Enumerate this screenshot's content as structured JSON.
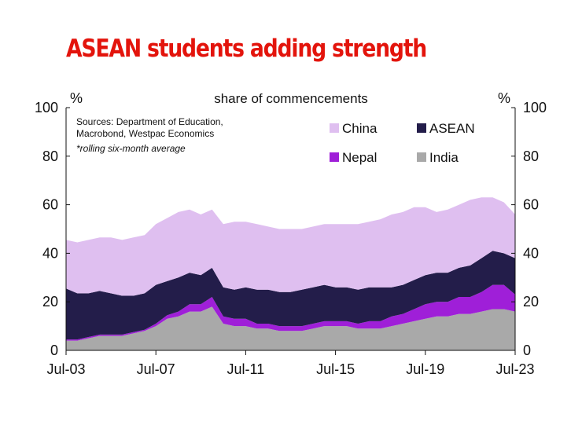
{
  "title": "ASEAN students adding strength",
  "chart_data": {
    "type": "area",
    "stacked": true,
    "subtitle": "share of commencements",
    "ylabel_left": "%",
    "ylabel_right": "%",
    "ylim": [
      0,
      100
    ],
    "yticks": [
      0,
      20,
      40,
      60,
      80,
      100
    ],
    "xlim": [
      2003.5,
      2023.5
    ],
    "xticks": [
      {
        "x": 2003.5,
        "label": "Jul-03"
      },
      {
        "x": 2007.5,
        "label": "Jul-07"
      },
      {
        "x": 2011.5,
        "label": "Jul-11"
      },
      {
        "x": 2015.5,
        "label": "Jul-15"
      },
      {
        "x": 2019.5,
        "label": "Jul-19"
      },
      {
        "x": 2023.5,
        "label": "Jul-23"
      }
    ],
    "sources": [
      "Sources: Department of Education,",
      "Macrobond, Westpac Economics"
    ],
    "note": "*rolling six-month average",
    "legend": [
      {
        "name": "China",
        "color": "#dfbff0"
      },
      {
        "name": "ASEAN",
        "color": "#231d4a"
      },
      {
        "name": "Nepal",
        "color": "#9f1fd8"
      },
      {
        "name": "India",
        "color": "#a9a9a9"
      }
    ],
    "x": [
      2003.5,
      2004.0,
      2004.5,
      2005.0,
      2005.5,
      2006.0,
      2006.5,
      2007.0,
      2007.5,
      2008.0,
      2008.5,
      2009.0,
      2009.5,
      2010.0,
      2010.5,
      2011.0,
      2011.5,
      2012.0,
      2012.5,
      2013.0,
      2013.5,
      2014.0,
      2014.5,
      2015.0,
      2015.5,
      2016.0,
      2016.5,
      2017.0,
      2017.5,
      2018.0,
      2018.5,
      2019.0,
      2019.5,
      2020.0,
      2020.5,
      2021.0,
      2021.5,
      2022.0,
      2022.5,
      2023.0,
      2023.5
    ],
    "series": [
      {
        "name": "India",
        "color": "#a9a9a9",
        "values": [
          4,
          4,
          5,
          6,
          6,
          6,
          7,
          8,
          10,
          13,
          14,
          16,
          16,
          18,
          11,
          10,
          10,
          9,
          9,
          8,
          8,
          8,
          9,
          10,
          10,
          10,
          9,
          9,
          9,
          10,
          11,
          12,
          13,
          14,
          14,
          15,
          15,
          16,
          17,
          17,
          16
        ]
      },
      {
        "name": "Nepal",
        "color": "#9f1fd8",
        "values": [
          0.5,
          0.5,
          0.5,
          0.5,
          0.5,
          0.5,
          0.5,
          0.5,
          1,
          1.5,
          2,
          3,
          3,
          4,
          3,
          3,
          3,
          2,
          2,
          2,
          2,
          2,
          2,
          2,
          2,
          2,
          2,
          3,
          3,
          4,
          4,
          5,
          6,
          6,
          6,
          7,
          7,
          8,
          10,
          10,
          7
        ]
      },
      {
        "name": "ASEAN",
        "color": "#231d4a",
        "values": [
          21,
          19,
          18,
          18,
          17,
          16,
          15,
          15,
          16,
          14,
          14,
          13,
          12,
          12,
          12,
          12,
          13,
          14,
          14,
          14,
          14,
          15,
          15,
          15,
          14,
          14,
          14,
          14,
          14,
          12,
          12,
          12,
          12,
          12,
          12,
          12,
          13,
          14,
          14,
          13,
          15
        ]
      },
      {
        "name": "China",
        "color": "#dfbff0",
        "values": [
          20,
          21,
          22,
          22,
          23,
          23,
          24,
          24,
          25,
          26,
          27,
          26,
          25,
          24,
          26,
          28,
          27,
          27,
          26,
          26,
          26,
          25,
          25,
          25,
          26,
          26,
          27,
          27,
          28,
          30,
          30,
          30,
          28,
          25,
          26,
          26,
          27,
          25,
          22,
          21,
          18
        ]
      }
    ]
  }
}
